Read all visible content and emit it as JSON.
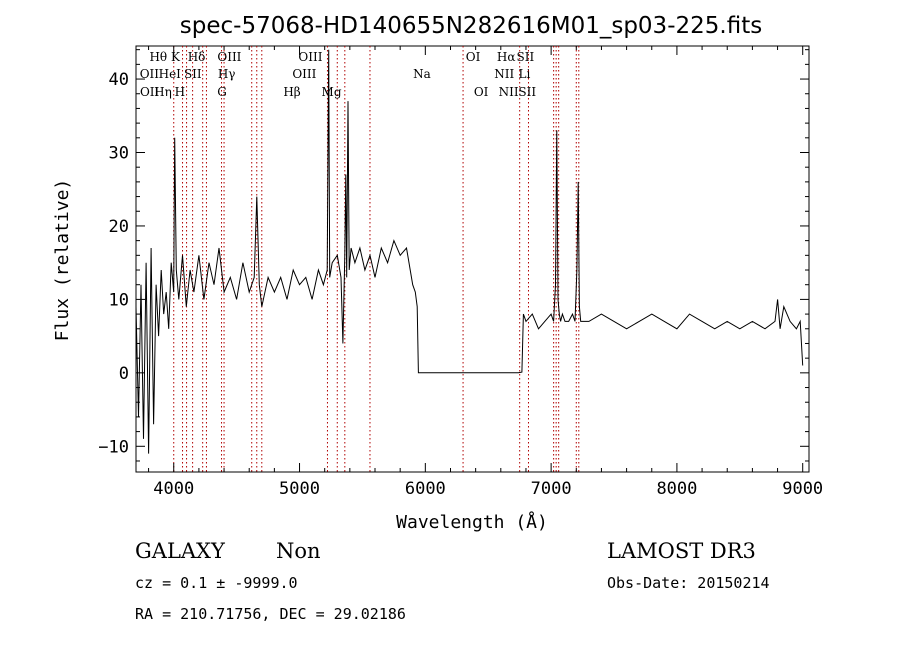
{
  "chart_data": {
    "type": "line",
    "title": "spec-57068-HD140655N282616M01_sp03-225.fits",
    "xlabel": "Wavelength (Å)",
    "ylabel": "Flux (relative)",
    "xlim": [
      3700,
      9050
    ],
    "ylim": [
      -13.5,
      44.5
    ],
    "x_ticks": [
      4000,
      5000,
      6000,
      7000,
      8000,
      9000
    ],
    "y_ticks": [
      -10,
      0,
      10,
      20,
      30,
      40
    ],
    "grid": false,
    "series": [
      {
        "x": [
          3700,
          3720,
          3740,
          3760,
          3780,
          3800,
          3820,
          3840,
          3860,
          3880,
          3900,
          3920,
          3940,
          3960,
          3980,
          4000,
          4008,
          4020,
          4040,
          4070,
          4100,
          4130,
          4160,
          4200,
          4240,
          4280,
          4320,
          4360,
          4400,
          4450,
          4500,
          4550,
          4600,
          4640,
          4660,
          4680,
          4700,
          4750,
          4800,
          4850,
          4900,
          4950,
          5000,
          5050,
          5100,
          5150,
          5190,
          5220,
          5232,
          5240,
          5260,
          5300,
          5330,
          5345,
          5360,
          5368,
          5375,
          5385,
          5395,
          5410,
          5440,
          5480,
          5520,
          5560,
          5600,
          5650,
          5700,
          5750,
          5800,
          5850,
          5900,
          5920,
          5935,
          5945,
          6000,
          6200,
          6400,
          6600,
          6740,
          6768,
          6780,
          6800,
          6850,
          6900,
          6950,
          7000,
          7020,
          7035,
          7045,
          7055,
          7065,
          7075,
          7090,
          7110,
          7140,
          7170,
          7190,
          7205,
          7215,
          7225,
          7235,
          7250,
          7300,
          7400,
          7500,
          7600,
          7700,
          7800,
          7900,
          8000,
          8100,
          8200,
          8300,
          8400,
          8500,
          8600,
          8700,
          8780,
          8800,
          8820,
          8850,
          8900,
          8950,
          8980,
          9000
        ],
        "values": [
          9,
          -6,
          12,
          -9,
          15,
          -11,
          17,
          -7,
          12,
          5,
          14,
          8,
          11,
          6,
          15,
          11,
          32,
          14,
          10,
          16,
          9,
          14,
          11,
          16,
          10,
          15,
          12,
          17,
          11,
          13,
          10,
          15,
          11,
          13,
          24,
          12,
          9,
          13,
          11,
          13,
          10,
          14,
          12,
          13,
          10,
          14,
          12,
          14,
          44,
          13,
          15,
          16,
          13,
          4,
          16,
          27,
          13,
          37,
          14,
          17,
          15,
          17,
          14,
          16,
          13,
          17,
          15,
          18,
          16,
          17,
          12,
          11,
          9,
          0,
          0,
          0,
          0,
          0,
          0,
          0.1,
          8,
          7,
          8,
          6,
          7,
          8,
          7,
          12,
          33,
          10,
          8,
          7,
          8,
          7,
          7,
          8,
          7,
          14,
          26,
          9,
          7,
          7,
          7,
          8,
          7,
          6,
          7,
          8,
          7,
          6,
          8,
          7,
          6,
          7,
          6,
          7,
          6,
          7,
          10,
          6,
          9,
          7,
          6,
          7,
          1
        ]
      }
    ],
    "lines": [
      {
        "name": "OII",
        "x": 3727,
        "row": 1
      },
      {
        "name": "OII",
        "x": 3729,
        "row": 2
      },
      {
        "name": "Hθ",
        "x": 3798,
        "row": 0
      },
      {
        "name": "Hη",
        "x": 3835,
        "row": 2
      },
      {
        "name": "HeI",
        "x": 3889,
        "row": 1
      },
      {
        "name": "K",
        "x": 3934,
        "row": 0
      },
      {
        "name": "H",
        "x": 3969,
        "row": 2
      },
      {
        "name": "Hδ",
        "x": 4102,
        "row": 0
      },
      {
        "name": "SII",
        "x": 4072,
        "row": 1
      },
      {
        "name": "G",
        "x": 4305,
        "row": 2
      },
      {
        "name": "Hγ",
        "x": 4341,
        "row": 1
      },
      {
        "name": "OIII",
        "x": 4363,
        "row": 0
      },
      {
        "name": "Hβ",
        "x": 4861,
        "row": 2
      },
      {
        "name": "OIII",
        "x": 4959,
        "row": 1
      },
      {
        "name": "OIII",
        "x": 5007,
        "row": 0
      },
      {
        "name": "Mg",
        "x": 5175,
        "row": 2
      },
      {
        "name": "Na",
        "x": 5894,
        "row": 1
      },
      {
        "name": "OI",
        "x": 6300,
        "row": 0
      },
      {
        "name": "OI",
        "x": 6364,
        "row": 2
      },
      {
        "name": "NII",
        "x": 6548,
        "row": 1
      },
      {
        "name": "Hα",
        "x": 6563,
        "row": 0
      },
      {
        "name": "NII",
        "x": 6583,
        "row": 2
      },
      {
        "name": "Li",
        "x": 6708,
        "row": 1
      },
      {
        "name": "SII",
        "x": 6716,
        "row": 0
      },
      {
        "name": "SII",
        "x": 6731,
        "row": 2
      }
    ],
    "line_markers": [
      4000,
      4070,
      4102,
      4150,
      4230,
      4260,
      4380,
      4400,
      4620,
      4660,
      4700,
      5222,
      5300,
      5360,
      5560,
      6300,
      6750,
      6820,
      7020,
      7040,
      7060,
      7200,
      7220
    ]
  },
  "info": {
    "class": "GALAXY",
    "subclass": "Non",
    "survey": "LAMOST DR3",
    "cz": "cz = 0.1 ± -9999.0",
    "obs_date": "Obs-Date: 20150214",
    "coords": "RA = 210.71756, DEC =  29.02186"
  },
  "colors": {
    "axes": "#000000",
    "line_markers": "#b00000"
  }
}
